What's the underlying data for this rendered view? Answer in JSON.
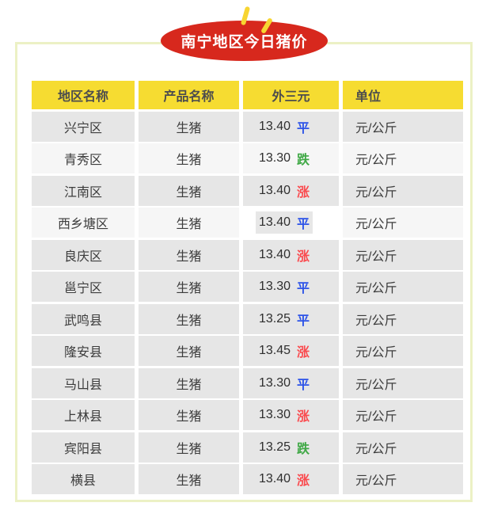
{
  "banner": {
    "title": "南宁地区今日猪价"
  },
  "table": {
    "headers": [
      "地区名称",
      "产品名称",
      "外三元",
      "单位"
    ],
    "rows": [
      {
        "region": "兴宁区",
        "product": "生猪",
        "price": "13.40",
        "trend": "平",
        "trend_dir": "flat",
        "unit": "元/公斤",
        "shade": "dark",
        "highlighted": false
      },
      {
        "region": "青秀区",
        "product": "生猪",
        "price": "13.30",
        "trend": "跌",
        "trend_dir": "down",
        "unit": "元/公斤",
        "shade": "light",
        "highlighted": false
      },
      {
        "region": "江南区",
        "product": "生猪",
        "price": "13.40",
        "trend": "涨",
        "trend_dir": "up",
        "unit": "元/公斤",
        "shade": "dark",
        "highlighted": false
      },
      {
        "region": "西乡塘区",
        "product": "生猪",
        "price": "13.40",
        "trend": "平",
        "trend_dir": "flat",
        "unit": "元/公斤",
        "shade": "light",
        "highlighted": true
      },
      {
        "region": "良庆区",
        "product": "生猪",
        "price": "13.40",
        "trend": "涨",
        "trend_dir": "up",
        "unit": "元/公斤",
        "shade": "dark",
        "highlighted": false
      },
      {
        "region": "邕宁区",
        "product": "生猪",
        "price": "13.30",
        "trend": "平",
        "trend_dir": "flat",
        "unit": "元/公斤",
        "shade": "dark",
        "highlighted": false
      },
      {
        "region": "武鸣县",
        "product": "生猪",
        "price": "13.25",
        "trend": "平",
        "trend_dir": "flat",
        "unit": "元/公斤",
        "shade": "dark",
        "highlighted": false
      },
      {
        "region": "隆安县",
        "product": "生猪",
        "price": "13.45",
        "trend": "涨",
        "trend_dir": "up",
        "unit": "元/公斤",
        "shade": "dark",
        "highlighted": false
      },
      {
        "region": "马山县",
        "product": "生猪",
        "price": "13.30",
        "trend": "平",
        "trend_dir": "flat",
        "unit": "元/公斤",
        "shade": "dark",
        "highlighted": false
      },
      {
        "region": "上林县",
        "product": "生猪",
        "price": "13.30",
        "trend": "涨",
        "trend_dir": "up",
        "unit": "元/公斤",
        "shade": "dark",
        "highlighted": false
      },
      {
        "region": "宾阳县",
        "product": "生猪",
        "price": "13.25",
        "trend": "跌",
        "trend_dir": "down",
        "unit": "元/公斤",
        "shade": "dark",
        "highlighted": false
      },
      {
        "region": "横县",
        "product": "生猪",
        "price": "13.40",
        "trend": "涨",
        "trend_dir": "up",
        "unit": "元/公斤",
        "shade": "dark",
        "highlighted": false
      }
    ]
  },
  "colors": {
    "banner_bg": "#d7281d",
    "dash_yellow": "#f7d531",
    "frame_border": "#ecf1c5",
    "header_bg": "#f6dc31",
    "row_dark": "#e6e6e6",
    "row_light": "#f6f6f6",
    "highlight_box": "#e7e7e7",
    "up": "#fa4b4f",
    "down": "#3fa845",
    "flat": "#2c53e8",
    "price_text": "#2e2e2e"
  }
}
